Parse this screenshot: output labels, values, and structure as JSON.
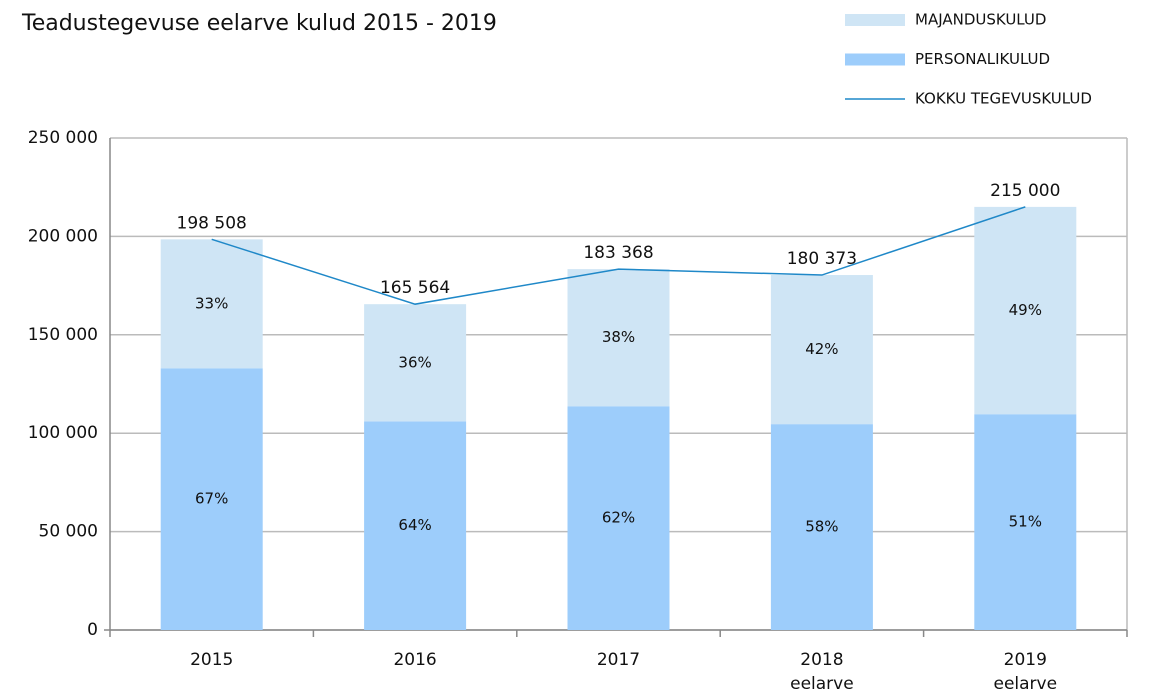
{
  "chart_data": {
    "type": "bar",
    "stacked": true,
    "title": "Teadustegevuse eelarve kulud 2015 - 2019",
    "categories": [
      "2015",
      "2016",
      "2017",
      "2018 eelarve",
      "2019 eelarve"
    ],
    "series": [
      {
        "name": "PERSONALIKULUD",
        "color": "#9dcdfb",
        "values": [
          133000,
          106000,
          113700,
          104600,
          109650
        ],
        "value_labels": [
          "67%",
          "64%",
          "62%",
          "58%",
          "51%"
        ]
      },
      {
        "name": "MAJANDUSKULUD",
        "color": "#cfe5f5",
        "values": [
          65508,
          59564,
          69668,
          75773,
          105350
        ],
        "value_labels": [
          "33%",
          "36%",
          "38%",
          "42%",
          "49%"
        ]
      },
      {
        "name": "KOKKU TEGEVUSKULUD",
        "type": "line",
        "color": "#1f88c8",
        "values": [
          198508,
          165564,
          183368,
          180373,
          215000
        ],
        "value_labels": [
          "198 508",
          "165 564",
          "183 368",
          "180 373",
          "215 000"
        ]
      }
    ],
    "ylim": [
      0,
      250000
    ],
    "yticks": [
      0,
      {
        "value": 50000,
        "label": "50 000"
      },
      {
        "value": 100000,
        "label": "100 000"
      },
      {
        "value": 150000,
        "label": "150 000"
      },
      {
        "value": 200000,
        "label": "200 000"
      },
      {
        "value": 250000,
        "label": "250 000"
      }
    ],
    "grid": true
  }
}
